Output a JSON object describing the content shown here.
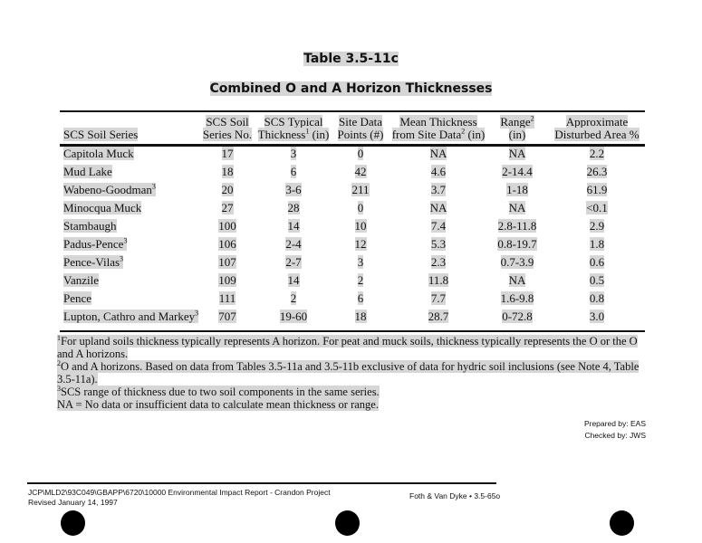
{
  "title": "Table 3.5-11c",
  "subtitle": "Combined O and A Horizon Thicknesses",
  "table": {
    "headers": [
      {
        "text": "SCS Soil Series",
        "sup": ""
      },
      {
        "line1": "SCS Soil",
        "line2": "Series No."
      },
      {
        "line1": "SCS Typical",
        "line2a": "Thickness",
        "sup": "1",
        "line2b": " (in)"
      },
      {
        "line1": "Site Data",
        "line2": "Points (#)"
      },
      {
        "line1": "Mean Thickness",
        "line2a": "from Site Data",
        "sup": "2",
        "line2b": " (in)"
      },
      {
        "line1a": "Range",
        "sup": "2",
        "line2": "(in)"
      },
      {
        "line1": "Approximate",
        "line2": "Disturbed Area %"
      }
    ],
    "rows": [
      {
        "name": "Capitola Muck",
        "sup": "",
        "no": "17",
        "typical": "3",
        "points": "0",
        "mean": "NA",
        "range": "NA",
        "area": "2.2"
      },
      {
        "name": "Mud Lake",
        "sup": "",
        "no": "18",
        "typical": "6",
        "points": "42",
        "mean": "4.6",
        "range": "2-14.4",
        "area": "26.3"
      },
      {
        "name": "Wabeno-Goodman",
        "sup": "3",
        "no": "20",
        "typical": "3-6",
        "points": "211",
        "mean": "3.7",
        "range": "1-18",
        "area": "61.9"
      },
      {
        "name": "Minocqua Muck",
        "sup": "",
        "no": "27",
        "typical": "28",
        "points": "0",
        "mean": "NA",
        "range": "NA",
        "area": "<0.1"
      },
      {
        "name": "Stambaugh",
        "sup": "",
        "no": "100",
        "typical": "14",
        "points": "10",
        "mean": "7.4",
        "range": "2.8-11.8",
        "area": "2.9"
      },
      {
        "name": "Padus-Pence",
        "sup": "3",
        "no": "106",
        "typical": "2-4",
        "points": "12",
        "mean": "5.3",
        "range": "0.8-19.7",
        "area": "1.8"
      },
      {
        "name": "Pence-Vilas",
        "sup": "3",
        "no": "107",
        "typical": "2-7",
        "points": "3",
        "mean": "2.3",
        "range": "0.7-3.9",
        "area": "0.6"
      },
      {
        "name": "Vanzile",
        "sup": "",
        "no": "109",
        "typical": "14",
        "points": "2",
        "mean": "11.8",
        "range": "NA",
        "area": "0.5"
      },
      {
        "name": "Pence",
        "sup": "",
        "no": "111",
        "typical": "2",
        "points": "6",
        "mean": "7.7",
        "range": "1.6-9.8",
        "area": "0.8"
      },
      {
        "name": "Lupton, Cathro and Markey",
        "sup": "3",
        "no": "707",
        "typical": "19-60",
        "points": "18",
        "mean": "28.7",
        "range": "0-72.8",
        "area": "3.0"
      }
    ]
  },
  "notes": [
    {
      "sup": "1",
      "text": "For upland soils thickness typically represents A horizon.  For peat and muck soils, thickness typically represents the O or the O and A horizons."
    },
    {
      "sup": "2",
      "text": "O and A horizons.  Based on data from Tables 3.5-11a and 3.5-11b exclusive of data for hydric soil inclusions (see Note 4, Table 3.5-11a)."
    },
    {
      "sup": "3",
      "text": "SCS range of thickness due to two soil components in the same series."
    },
    {
      "sup": "",
      "text": "NA  =  No data or insufficient data to calculate mean thickness or range."
    }
  ],
  "prepared_by": "Prepared by:  EAS",
  "checked_by": "Checked by:  JWS",
  "footer": {
    "path": "JCP\\MLD2\\93C049\\GBAPP\\6720\\10000  Environmental Impact Report - Crandon Project",
    "revised": "Revised January 14, 1997",
    "right": "Foth & Van Dyke  •  3.5-65o"
  }
}
